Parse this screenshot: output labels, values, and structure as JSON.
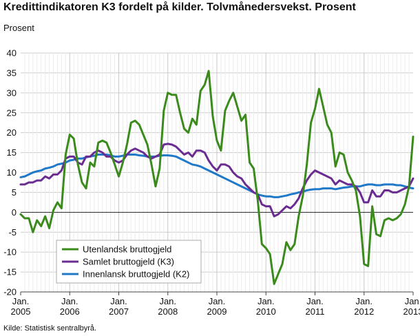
{
  "chart_data": {
    "type": "line",
    "title": "Kredittindikatoren K3 fordelt på kilder. Tolvmånedersvekst. Prosent",
    "ylabel": "Prosent",
    "xlabel": "",
    "source": "Kilde: Statistisk sentralbyrå.",
    "ylim": [
      -20,
      40
    ],
    "yticks": [
      -20,
      -15,
      -10,
      -5,
      0,
      5,
      10,
      15,
      20,
      25,
      30,
      35,
      40
    ],
    "xlim": [
      2005.0,
      2013.0
    ],
    "xticks": [
      {
        "x": 2005,
        "line1": "Jan.",
        "line2": "2005"
      },
      {
        "x": 2006,
        "line1": "Jan.",
        "line2": "2006"
      },
      {
        "x": 2007,
        "line1": "Jan.",
        "line2": "2007"
      },
      {
        "x": 2008,
        "line1": "Jan.",
        "line2": "2008"
      },
      {
        "x": 2009,
        "line1": "Jan.",
        "line2": "2009"
      },
      {
        "x": 2010,
        "line1": "Jan.",
        "line2": "2010"
      },
      {
        "x": 2011,
        "line1": "Jan.",
        "line2": "2011"
      },
      {
        "x": 2012,
        "line1": "Jan.",
        "line2": "2012"
      },
      {
        "x": 2013,
        "line1": "Jan.",
        "line2": "2013"
      }
    ],
    "grid": "vertical-and-horizontal",
    "legend_position": "bottom-left",
    "series": [
      {
        "name": "Utenlandsk bruttogjeld",
        "color": "#3a8a1c",
        "x": [
          2005.0,
          2005.083,
          2005.167,
          2005.25,
          2005.333,
          2005.417,
          2005.5,
          2005.583,
          2005.667,
          2005.75,
          2005.833,
          2005.917,
          2006.0,
          2006.083,
          2006.167,
          2006.25,
          2006.333,
          2006.417,
          2006.5,
          2006.583,
          2006.667,
          2006.75,
          2006.833,
          2006.917,
          2007.0,
          2007.083,
          2007.167,
          2007.25,
          2007.333,
          2007.417,
          2007.5,
          2007.583,
          2007.667,
          2007.75,
          2007.833,
          2007.917,
          2008.0,
          2008.083,
          2008.167,
          2008.25,
          2008.333,
          2008.417,
          2008.5,
          2008.583,
          2008.667,
          2008.75,
          2008.833,
          2008.917,
          2009.0,
          2009.083,
          2009.167,
          2009.25,
          2009.333,
          2009.417,
          2009.5,
          2009.583,
          2009.667,
          2009.75,
          2009.833,
          2009.917,
          2010.0,
          2010.083,
          2010.167,
          2010.25,
          2010.333,
          2010.417,
          2010.5,
          2010.583,
          2010.667,
          2010.75,
          2010.833,
          2010.917,
          2011.0,
          2011.083,
          2011.167,
          2011.25,
          2011.333,
          2011.417,
          2011.5,
          2011.583,
          2011.667,
          2011.75,
          2011.833,
          2011.917,
          2012.0,
          2012.083,
          2012.167,
          2012.25,
          2012.333,
          2012.417,
          2012.5,
          2012.583,
          2012.667,
          2012.75,
          2012.833,
          2012.917,
          2013.0
        ],
        "values": [
          -0.5,
          -1.5,
          -1.5,
          -5,
          -2,
          -3.5,
          -1,
          -4,
          0.5,
          2.5,
          1,
          14.5,
          19.5,
          18.5,
          12,
          7.5,
          6,
          12.5,
          11.5,
          17.5,
          18,
          17.5,
          15,
          12,
          9,
          12.5,
          17,
          22.5,
          23,
          22,
          19.5,
          17,
          12,
          6.5,
          11,
          25.5,
          30,
          29.5,
          29.5,
          25,
          21,
          20,
          23.5,
          22,
          30.5,
          32,
          35.5,
          24,
          18,
          15.5,
          25.5,
          28,
          30,
          26.5,
          23,
          24.5,
          12.5,
          11,
          3,
          -8,
          -9,
          -10.5,
          -18,
          -15.5,
          -13,
          -7.5,
          -9.5,
          -8,
          -1,
          4,
          12,
          22.5,
          26,
          31,
          26.5,
          22,
          20,
          11.5,
          15,
          14.5,
          10,
          8,
          5.5,
          -1,
          -13,
          -13.5,
          1.5,
          -5.5,
          -6,
          -2,
          -1.5,
          -2,
          -1.5,
          -0.5,
          2,
          6.5,
          19
        ]
      },
      {
        "name": "Samlet bruttogjeld (K3)",
        "color": "#6a2c91",
        "x": [
          2005.0,
          2005.083,
          2005.167,
          2005.25,
          2005.333,
          2005.417,
          2005.5,
          2005.583,
          2005.667,
          2005.75,
          2005.833,
          2005.917,
          2006.0,
          2006.083,
          2006.167,
          2006.25,
          2006.333,
          2006.417,
          2006.5,
          2006.583,
          2006.667,
          2006.75,
          2006.833,
          2006.917,
          2007.0,
          2007.083,
          2007.167,
          2007.25,
          2007.333,
          2007.417,
          2007.5,
          2007.583,
          2007.667,
          2007.75,
          2007.833,
          2007.917,
          2008.0,
          2008.083,
          2008.167,
          2008.25,
          2008.333,
          2008.417,
          2008.5,
          2008.583,
          2008.667,
          2008.75,
          2008.833,
          2008.917,
          2009.0,
          2009.083,
          2009.167,
          2009.25,
          2009.333,
          2009.417,
          2009.5,
          2009.583,
          2009.667,
          2009.75,
          2009.833,
          2009.917,
          2010.0,
          2010.083,
          2010.167,
          2010.25,
          2010.333,
          2010.417,
          2010.5,
          2010.583,
          2010.667,
          2010.75,
          2010.833,
          2010.917,
          2011.0,
          2011.083,
          2011.167,
          2011.25,
          2011.333,
          2011.417,
          2011.5,
          2011.583,
          2011.667,
          2011.75,
          2011.833,
          2011.917,
          2012.0,
          2012.083,
          2012.167,
          2012.25,
          2012.333,
          2012.417,
          2012.5,
          2012.583,
          2012.667,
          2012.75,
          2012.833,
          2012.917,
          2013.0
        ],
        "values": [
          7,
          7,
          7.5,
          7.5,
          8,
          8,
          9,
          8.5,
          9.5,
          9.5,
          10.5,
          13.5,
          14,
          14,
          12.5,
          12,
          14,
          14,
          15,
          15.5,
          15,
          14,
          14,
          13,
          12.5,
          13,
          14.5,
          15.5,
          16,
          15.5,
          15,
          14,
          13.5,
          14,
          14.5,
          17,
          17.2,
          17,
          16.5,
          15.5,
          14.5,
          15,
          14,
          15.5,
          15.5,
          15,
          13,
          11.5,
          10.5,
          12,
          12,
          11.5,
          10,
          9,
          8.5,
          7,
          6,
          5,
          4.5,
          2,
          1.5,
          1.5,
          -1,
          -0.5,
          0.5,
          1.5,
          1,
          2,
          3.5,
          6,
          8,
          9.5,
          10.5,
          10,
          9.5,
          9,
          8.5,
          7,
          8,
          7.5,
          7,
          7,
          6.5,
          5,
          2.5,
          2.5,
          5.5,
          4,
          4,
          5.5,
          5.5,
          5,
          5,
          5.5,
          6,
          6.5,
          8.5
        ]
      },
      {
        "name": "Innenlansk bruttogjeld (K2)",
        "color": "#1f78c8",
        "x": [
          2005.0,
          2005.083,
          2005.167,
          2005.25,
          2005.333,
          2005.417,
          2005.5,
          2005.583,
          2005.667,
          2005.75,
          2005.833,
          2005.917,
          2006.0,
          2006.083,
          2006.167,
          2006.25,
          2006.333,
          2006.417,
          2006.5,
          2006.583,
          2006.667,
          2006.75,
          2006.833,
          2006.917,
          2007.0,
          2007.083,
          2007.167,
          2007.25,
          2007.333,
          2007.417,
          2007.5,
          2007.583,
          2007.667,
          2007.75,
          2007.833,
          2007.917,
          2008.0,
          2008.083,
          2008.167,
          2008.25,
          2008.333,
          2008.417,
          2008.5,
          2008.583,
          2008.667,
          2008.75,
          2008.833,
          2008.917,
          2009.0,
          2009.083,
          2009.167,
          2009.25,
          2009.333,
          2009.417,
          2009.5,
          2009.583,
          2009.667,
          2009.75,
          2009.833,
          2009.917,
          2010.0,
          2010.083,
          2010.167,
          2010.25,
          2010.333,
          2010.417,
          2010.5,
          2010.583,
          2010.667,
          2010.75,
          2010.833,
          2010.917,
          2011.0,
          2011.083,
          2011.167,
          2011.25,
          2011.333,
          2011.417,
          2011.5,
          2011.583,
          2011.667,
          2011.75,
          2011.833,
          2011.917,
          2012.0,
          2012.083,
          2012.167,
          2012.25,
          2012.333,
          2012.417,
          2012.5,
          2012.583,
          2012.667,
          2012.75,
          2012.833,
          2012.917,
          2013.0
        ],
        "values": [
          8.8,
          9,
          9.5,
          10,
          10.3,
          10.5,
          11,
          11.2,
          11.5,
          12,
          12.2,
          12.5,
          13,
          13.2,
          13.5,
          13.5,
          13.8,
          14,
          14.2,
          14.5,
          14.5,
          14.5,
          14.3,
          14,
          14,
          14.2,
          14.5,
          14.5,
          14.5,
          14.3,
          14.2,
          14,
          14,
          14,
          14.2,
          14.3,
          14.3,
          14.2,
          14,
          13.5,
          13,
          12.5,
          12,
          11.8,
          11.5,
          11,
          10.5,
          10,
          9.5,
          9,
          8.5,
          8,
          7.5,
          7,
          6.5,
          6,
          5.5,
          5,
          4.5,
          4.2,
          4,
          4,
          3.8,
          3.8,
          4,
          4.2,
          4.5,
          4.7,
          5,
          5.2,
          5.5,
          5.7,
          5.8,
          5.8,
          6,
          6,
          6,
          5.8,
          6,
          6.2,
          6.3,
          6.5,
          6.5,
          6.5,
          6.8,
          7,
          7,
          6.8,
          6.8,
          7,
          7,
          7,
          6.8,
          6.8,
          6.5,
          6.2,
          6
        ]
      }
    ]
  }
}
